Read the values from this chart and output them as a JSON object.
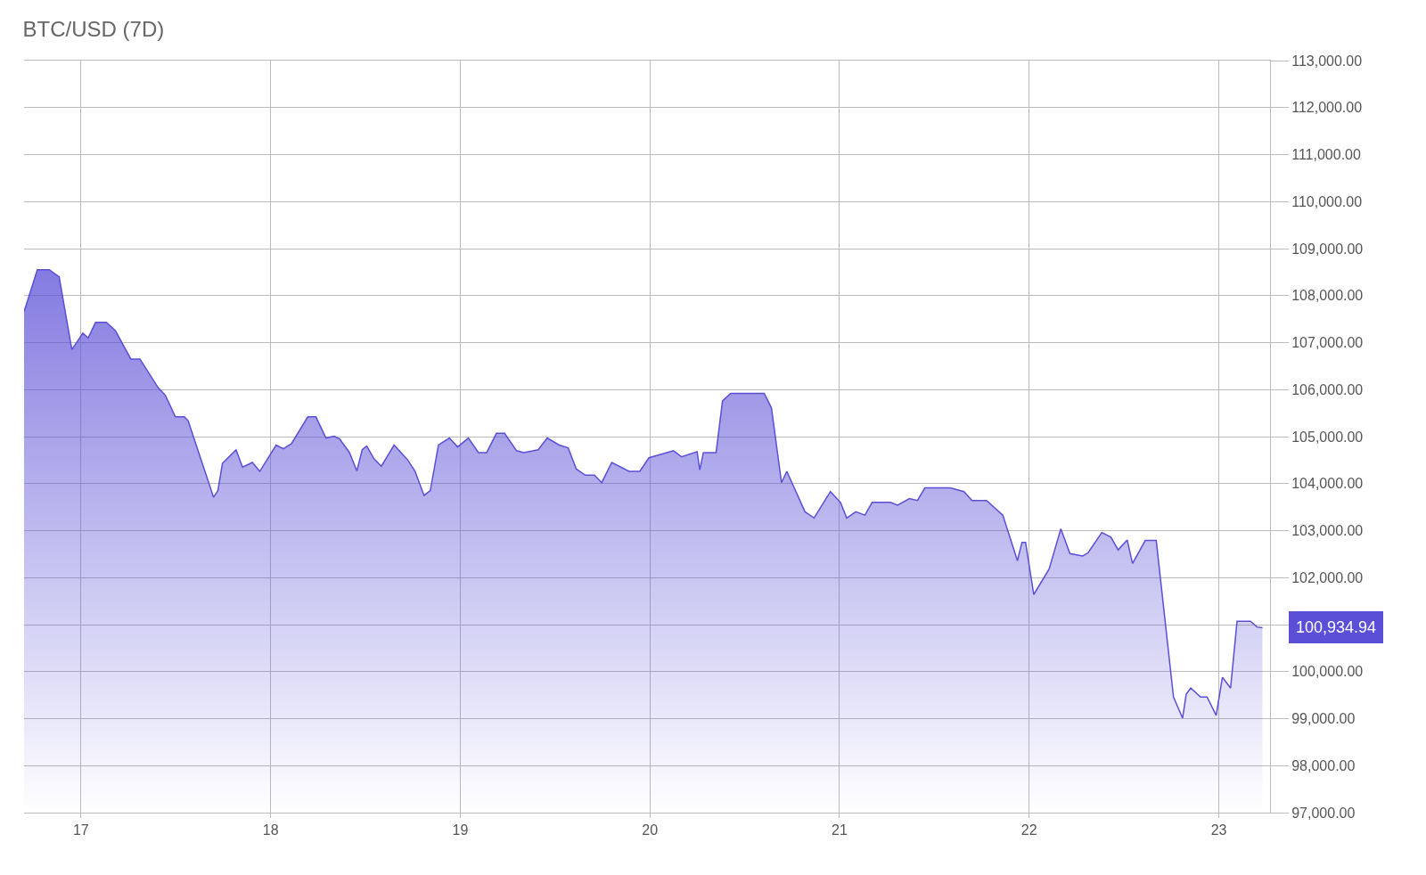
{
  "chart_data": {
    "type": "area",
    "title": "BTC/USD (7D)",
    "x": [
      16.7,
      16.77,
      16.833,
      16.885,
      16.952,
      17.01,
      17.038,
      17.077,
      17.134,
      17.182,
      17.263,
      17.311,
      17.407,
      17.445,
      17.498,
      17.545,
      17.565,
      17.699,
      17.722,
      17.746,
      17.818,
      17.852,
      17.904,
      17.943,
      18.029,
      18.067,
      18.11,
      18.196,
      18.239,
      18.292,
      18.335,
      18.364,
      18.416,
      18.455,
      18.483,
      18.507,
      18.545,
      18.584,
      18.651,
      18.722,
      18.761,
      18.809,
      18.842,
      18.885,
      18.943,
      18.986,
      19.043,
      19.096,
      19.139,
      19.191,
      19.234,
      19.297,
      19.335,
      19.411,
      19.459,
      19.522,
      19.569,
      19.612,
      19.66,
      19.708,
      19.746,
      19.799,
      19.89,
      19.947,
      19.995,
      20.124,
      20.167,
      20.249,
      20.263,
      20.282,
      20.349,
      20.383,
      20.426,
      20.603,
      20.641,
      20.694,
      20.722,
      20.818,
      20.866,
      20.952,
      21.005,
      21.038,
      21.086,
      21.134,
      21.172,
      21.268,
      21.306,
      21.368,
      21.411,
      21.45,
      21.584,
      21.656,
      21.699,
      21.775,
      21.861,
      21.938,
      21.962,
      21.981,
      22.024,
      22.105,
      22.167,
      22.215,
      22.282,
      22.311,
      22.383,
      22.431,
      22.469,
      22.517,
      22.545,
      22.612,
      22.67,
      22.761,
      22.809,
      22.828,
      22.852,
      22.904,
      22.938,
      22.986,
      23.019,
      23.062,
      23.096,
      23.167,
      23.201,
      23.23
    ],
    "series": [
      {
        "color": "#5a4fd6",
        "values": [
          107660,
          108550,
          108550,
          108400,
          106850,
          107200,
          107100,
          107430,
          107430,
          107250,
          106650,
          106650,
          106040,
          105880,
          105420,
          105420,
          105340,
          103710,
          103850,
          104430,
          104720,
          104350,
          104450,
          104260,
          104820,
          104740,
          104850,
          105420,
          105420,
          104970,
          105010,
          104950,
          104660,
          104270,
          104720,
          104800,
          104530,
          104370,
          104820,
          104510,
          104270,
          103750,
          103850,
          104820,
          104970,
          104780,
          104970,
          104660,
          104660,
          105070,
          105070,
          104700,
          104660,
          104720,
          104970,
          104820,
          104760,
          104310,
          104180,
          104180,
          104020,
          104450,
          104260,
          104260,
          104550,
          104700,
          104570,
          104680,
          104290,
          104660,
          104660,
          105760,
          105920,
          105920,
          105610,
          104020,
          104260,
          103400,
          103270,
          103830,
          103600,
          103270,
          103400,
          103330,
          103600,
          103600,
          103540,
          103680,
          103640,
          103910,
          103910,
          103830,
          103640,
          103640,
          103330,
          102360,
          102750,
          102750,
          101640,
          102180,
          103040,
          102510,
          102460,
          102530,
          102960,
          102860,
          102590,
          102800,
          102300,
          102790,
          102790,
          99460,
          99010,
          99520,
          99650,
          99460,
          99460,
          99070,
          99880,
          99650,
          101070,
          101070,
          100950,
          100934.94
        ]
      }
    ],
    "annotations": [
      {
        "text": "100,934.94",
        "x": 23.23,
        "y": 100934.94
      }
    ],
    "xlim": [
      16.7,
      23.27
    ],
    "xticks": [
      17,
      18,
      19,
      20,
      21,
      22,
      23
    ],
    "ylim": [
      97000,
      113000
    ],
    "yticks": [
      {
        "value": 97000,
        "label": "97,000.00"
      },
      {
        "value": 98000,
        "label": "98,000.00"
      },
      {
        "value": 99000,
        "label": "99,000.00"
      },
      {
        "value": 100000,
        "label": "100,000.00"
      },
      {
        "value": 101000,
        "label": null
      },
      {
        "value": 102000,
        "label": "102,000.00"
      },
      {
        "value": 103000,
        "label": "103,000.00"
      },
      {
        "value": 104000,
        "label": "104,000.00"
      },
      {
        "value": 105000,
        "label": "105,000.00"
      },
      {
        "value": 106000,
        "label": "106,000.00"
      },
      {
        "value": 107000,
        "label": "107,000.00"
      },
      {
        "value": 108000,
        "label": "108,000.00"
      },
      {
        "value": 109000,
        "label": "109,000.00"
      },
      {
        "value": 110000,
        "label": "110,000.00"
      },
      {
        "value": 111000,
        "label": "111,000.00"
      },
      {
        "value": 112000,
        "label": "112,000.00"
      },
      {
        "value": 113000,
        "label": "113,000.00"
      }
    ],
    "grid": true
  }
}
